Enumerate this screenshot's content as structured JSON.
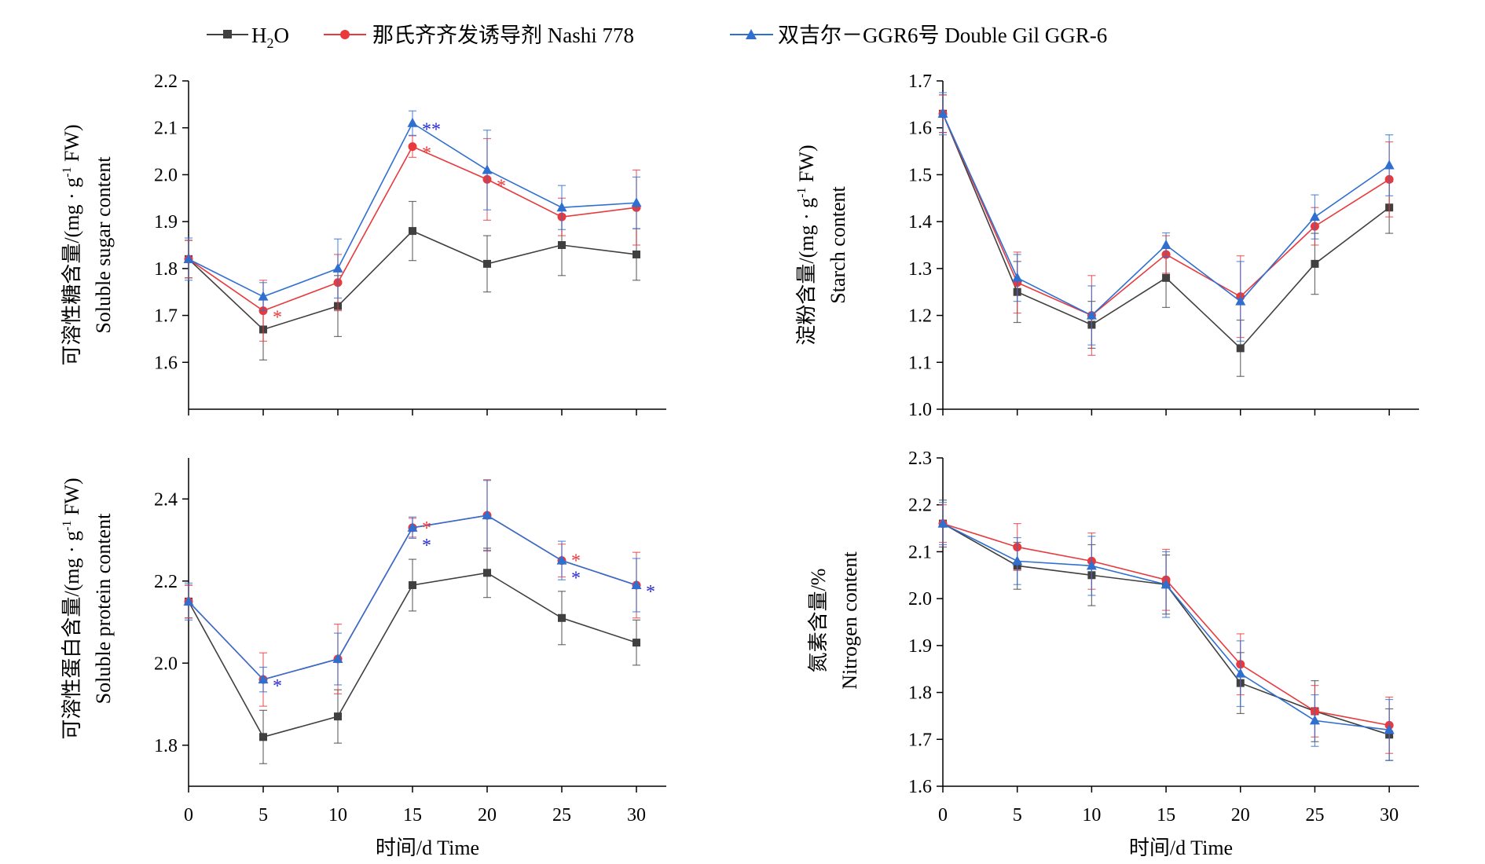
{
  "legend": [
    {
      "label": "H",
      "sub": "2",
      "label_after": "O"
    },
    {
      "label": "那氏齐齐发诱导剂  Nashi 778"
    },
    {
      "label": "双吉尔－GGR6号 Double Gil GGR-6"
    }
  ],
  "colors": {
    "h2o": "#404040",
    "nashi": "#e8393d",
    "ggr6": "#2f6fd0",
    "star_red": "#e8393d",
    "star_blue": "#2a2ad0"
  },
  "chart_data": [
    {
      "type": "line",
      "ylabel_zh": "可溶性糖含量/(mg · g",
      "ylabel_sup": "-1",
      "ylabel_zh_end": " FW)",
      "ylabel_en": "Soluble sugar content",
      "xlabel": "",
      "x": [
        0,
        5,
        10,
        15,
        20,
        25,
        30
      ],
      "xlim": [
        0,
        32
      ],
      "ylim": [
        1.5,
        2.2
      ],
      "yticks": [
        "1.6",
        "1.7",
        "1.8",
        "1.9",
        "2.0",
        "2.1",
        "2.2"
      ],
      "xticks": [],
      "series": [
        {
          "values": [
            1.82,
            1.67,
            1.72,
            1.88,
            1.81,
            1.85,
            1.83
          ],
          "err": [
            0.04,
            0.065,
            0.065,
            0.063,
            0.06,
            0.065,
            0.055
          ]
        },
        {
          "values": [
            1.82,
            1.71,
            1.77,
            2.06,
            1.99,
            1.91,
            1.93
          ],
          "err": [
            0.04,
            0.065,
            0.06,
            0.023,
            0.087,
            0.04,
            0.08
          ]
        },
        {
          "values": [
            1.82,
            1.74,
            1.8,
            2.11,
            2.01,
            1.93,
            1.94
          ],
          "err": [
            0.045,
            0.03,
            0.063,
            0.026,
            0.085,
            0.047,
            0.055
          ]
        }
      ],
      "annotations": [
        {
          "x": 5,
          "y": 1.71,
          "text": "*",
          "color": "star_red"
        },
        {
          "x": 15,
          "y": 2.06,
          "text": "*",
          "color": "star_red"
        },
        {
          "x": 15,
          "y": 2.11,
          "text": "**",
          "color": "star_blue"
        },
        {
          "x": 20,
          "y": 1.99,
          "text": "*",
          "color": "star_red"
        }
      ]
    },
    {
      "type": "line",
      "ylabel_zh": "淀粉含量/(mg · g",
      "ylabel_sup": "-1",
      "ylabel_zh_end": " FW)",
      "ylabel_en": "Starch content",
      "xlabel": "",
      "x": [
        0,
        5,
        10,
        15,
        20,
        25,
        30
      ],
      "xlim": [
        0,
        32
      ],
      "ylim": [
        1.0,
        1.7
      ],
      "yticks": [
        "1.0",
        "1.1",
        "1.2",
        "1.3",
        "1.4",
        "1.5",
        "1.6",
        "1.7"
      ],
      "xticks": [],
      "series": [
        {
          "values": [
            1.63,
            1.25,
            1.18,
            1.28,
            1.13,
            1.31,
            1.43
          ],
          "err": [
            0.04,
            0.065,
            0.05,
            0.063,
            0.06,
            0.065,
            0.055
          ]
        },
        {
          "values": [
            1.63,
            1.27,
            1.2,
            1.33,
            1.24,
            1.39,
            1.49
          ],
          "err": [
            0.04,
            0.065,
            0.085,
            0.04,
            0.087,
            0.04,
            0.08
          ]
        },
        {
          "values": [
            1.63,
            1.28,
            1.2,
            1.35,
            1.23,
            1.41,
            1.52
          ],
          "err": [
            0.045,
            0.05,
            0.063,
            0.026,
            0.085,
            0.047,
            0.065
          ]
        }
      ],
      "annotations": []
    },
    {
      "type": "line",
      "ylabel_zh": "可溶性蛋白含量/(mg · g",
      "ylabel_sup": "-1",
      "ylabel_zh_end": " FW)",
      "ylabel_en": "Soluble protein content",
      "xlabel": "时间/d    Time",
      "x": [
        0,
        5,
        10,
        15,
        20,
        25,
        30
      ],
      "xlim": [
        0,
        32
      ],
      "ylim": [
        1.7,
        2.5
      ],
      "yticks": [
        "1.8",
        "2.0",
        "2.2",
        "2.4"
      ],
      "xticks": [
        "0",
        "5",
        "10",
        "15",
        "20",
        "25",
        "30"
      ],
      "series": [
        {
          "values": [
            2.15,
            1.82,
            1.87,
            2.19,
            2.22,
            2.11,
            2.05
          ],
          "err": [
            0.04,
            0.065,
            0.065,
            0.063,
            0.06,
            0.065,
            0.055
          ]
        },
        {
          "values": [
            2.15,
            1.96,
            2.01,
            2.33,
            2.36,
            2.25,
            2.19
          ],
          "err": [
            0.04,
            0.065,
            0.085,
            0.023,
            0.087,
            0.04,
            0.08
          ]
        },
        {
          "values": [
            2.15,
            1.96,
            2.01,
            2.33,
            2.36,
            2.25,
            2.19
          ],
          "err": [
            0.045,
            0.03,
            0.063,
            0.026,
            0.085,
            0.047,
            0.065
          ]
        }
      ],
      "annotations": [
        {
          "x": 5,
          "y": 1.96,
          "text": "*",
          "color": "star_blue"
        },
        {
          "x": 15,
          "y": 2.33,
          "text": "*",
          "color": "star_red",
          "dy": -8
        },
        {
          "x": 15,
          "y": 2.33,
          "text": "*",
          "color": "star_blue",
          "dy": 14
        },
        {
          "x": 25,
          "y": 2.25,
          "text": "*",
          "color": "star_red",
          "dy": -8
        },
        {
          "x": 25,
          "y": 2.25,
          "text": "*",
          "color": "star_blue",
          "dy": 14
        },
        {
          "x": 30,
          "y": 2.19,
          "text": "*",
          "color": "star_blue"
        }
      ]
    },
    {
      "type": "line",
      "ylabel_zh": "氮素含量/%",
      "ylabel_sup": "",
      "ylabel_zh_end": "",
      "ylabel_en": "Nitrogen content",
      "xlabel": "时间/d  Time",
      "x": [
        0,
        5,
        10,
        15,
        20,
        25,
        30
      ],
      "xlim": [
        0,
        32
      ],
      "ylim": [
        1.6,
        2.3
      ],
      "yticks": [
        "1.6",
        "1.7",
        "1.8",
        "1.9",
        "2.0",
        "2.1",
        "2.2",
        "2.3"
      ],
      "xticks": [
        "0",
        "5",
        "10",
        "15",
        "20",
        "25",
        "30"
      ],
      "series": [
        {
          "values": [
            2.16,
            2.07,
            2.05,
            2.03,
            1.82,
            1.76,
            1.71
          ],
          "err": [
            0.05,
            0.05,
            0.065,
            0.063,
            0.065,
            0.065,
            0.055
          ]
        },
        {
          "values": [
            2.16,
            2.11,
            2.08,
            2.04,
            1.86,
            1.76,
            1.73
          ],
          "err": [
            0.04,
            0.05,
            0.06,
            0.065,
            0.065,
            0.055,
            0.06
          ]
        },
        {
          "values": [
            2.16,
            2.08,
            2.07,
            2.03,
            1.84,
            1.74,
            1.72
          ],
          "err": [
            0.045,
            0.05,
            0.063,
            0.07,
            0.07,
            0.055,
            0.065
          ]
        }
      ],
      "annotations": []
    }
  ]
}
